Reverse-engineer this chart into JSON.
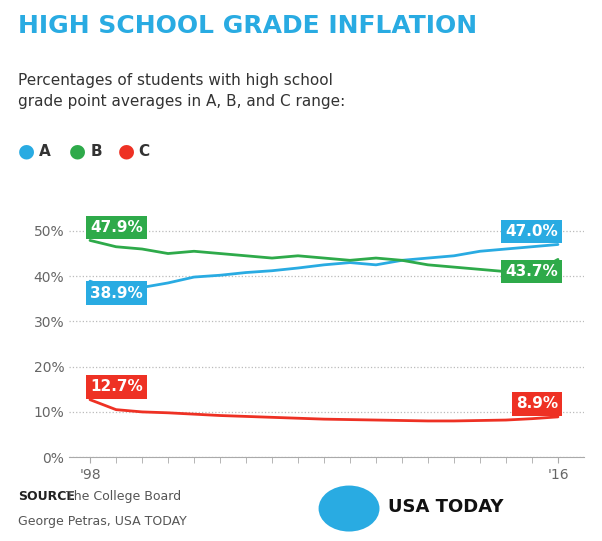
{
  "title": "HIGH SCHOOL GRADE INFLATION",
  "subtitle": "Percentages of students with high school\ngrade point averages in A, B, and C range:",
  "legend": [
    "A",
    "B",
    "C"
  ],
  "legend_colors": [
    "#29ABE2",
    "#2EAA4A",
    "#EE3124"
  ],
  "years": [
    1998,
    1999,
    2000,
    2001,
    2002,
    2003,
    2004,
    2005,
    2006,
    2007,
    2008,
    2009,
    2010,
    2011,
    2012,
    2013,
    2014,
    2015,
    2016
  ],
  "A_values": [
    38.9,
    36.5,
    37.5,
    38.5,
    39.8,
    40.2,
    40.8,
    41.2,
    41.8,
    42.5,
    43.0,
    42.5,
    43.5,
    44.0,
    44.5,
    45.5,
    46.0,
    46.5,
    47.0
  ],
  "B_values": [
    47.9,
    46.5,
    46.0,
    45.0,
    45.5,
    45.0,
    44.5,
    44.0,
    44.5,
    44.0,
    43.5,
    44.0,
    43.5,
    42.5,
    42.0,
    41.5,
    41.0,
    40.5,
    43.7
  ],
  "C_values": [
    12.7,
    10.5,
    10.0,
    9.8,
    9.5,
    9.2,
    9.0,
    8.8,
    8.6,
    8.4,
    8.3,
    8.2,
    8.1,
    8.0,
    8.0,
    8.1,
    8.2,
    8.5,
    8.9
  ],
  "A_color": "#29ABE2",
  "B_color": "#2EAA4A",
  "C_color": "#EE3124",
  "A_start_label": "38.9%",
  "A_end_label": "47.0%",
  "B_start_label": "47.9%",
  "B_end_label": "43.7%",
  "C_start_label": "12.7%",
  "C_end_label": "8.9%",
  "ylim": [
    0,
    55
  ],
  "yticks": [
    0,
    10,
    20,
    30,
    40,
    50
  ],
  "background_color": "#ffffff",
  "title_color": "#29ABE2",
  "title_fontsize": 18,
  "subtitle_fontsize": 11,
  "source_bold": "SOURCE",
  "source_rest": " The College Board",
  "source_line2": "George Petras, USA TODAY",
  "usatoday_text": "USA TODAY",
  "usatoday_color": "#29ABE2"
}
